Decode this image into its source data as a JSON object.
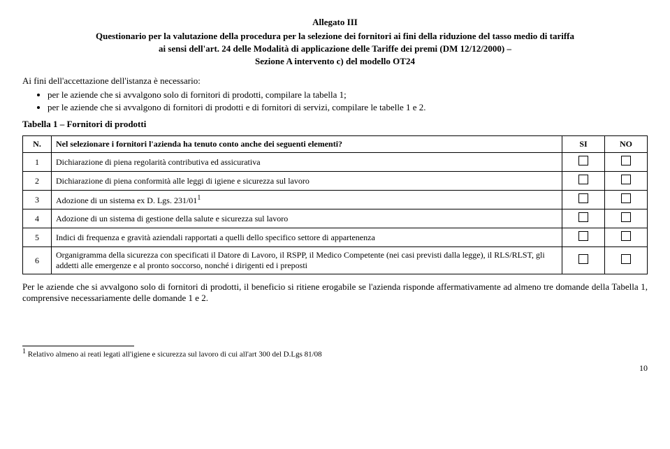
{
  "header": {
    "allegato": "Allegato III",
    "line1": "Questionario per la valutazione della procedura per la selezione dei fornitori ai fini della riduzione del tasso medio di tariffa",
    "line2": "ai sensi dell'art. 24 delle Modalità di applicazione delle Tariffe dei premi (DM 12/12/2000) –",
    "line3": "Sezione A intervento c) del modello OT24"
  },
  "intro": "Ai fini dell'accettazione dell'istanza è necessario:",
  "bullets": {
    "b1": "per le aziende che si avvalgono solo di fornitori di prodotti, compilare la tabella 1;",
    "b2": "per le aziende che si avvalgono di fornitori di prodotti e di fornitori di servizi, compilare le tabelle 1 e 2."
  },
  "tabella_title": "Tabella 1 – Fornitori di prodotti",
  "table": {
    "head": {
      "n": "N.",
      "q": "Nel selezionare i fornitori l'azienda ha tenuto conto anche dei seguenti elementi?",
      "si": "SI",
      "no": "NO"
    },
    "rows": [
      {
        "n": "1",
        "q": "Dichiarazione di piena regolarità contributiva ed assicurativa"
      },
      {
        "n": "2",
        "q": "Dichiarazione di piena conformità alle leggi di igiene e sicurezza sul lavoro"
      },
      {
        "n": "3",
        "q": "Adozione di un sistema ex D. Lgs. 231/01",
        "sup": "1"
      },
      {
        "n": "4",
        "q": "Adozione di un sistema di gestione della salute e sicurezza sul lavoro"
      },
      {
        "n": "5",
        "q": "Indici di frequenza e gravità aziendali rapportati a quelli dello specifico settore di appartenenza"
      },
      {
        "n": "6",
        "q": "Organigramma della sicurezza con specificati il Datore di Lavoro, il RSPP, il Medico Competente (nei casi previsti dalla legge), il RLS/RLST, gli addetti alle emergenze e al pronto soccorso, nonché i dirigenti ed i preposti"
      }
    ]
  },
  "closing": "Per le aziende che si avvalgono solo di fornitori di prodotti, il beneficio si ritiene erogabile se l'azienda risponde affermativamente ad almeno tre domande della Tabella 1, comprensive necessariamente delle domande 1 e 2.",
  "footnote": {
    "marker": "1",
    "text": " Relativo almeno ai reati legati all'igiene e sicurezza sul lavoro di cui all'art 300 del D.Lgs 81/08"
  },
  "page": "10"
}
